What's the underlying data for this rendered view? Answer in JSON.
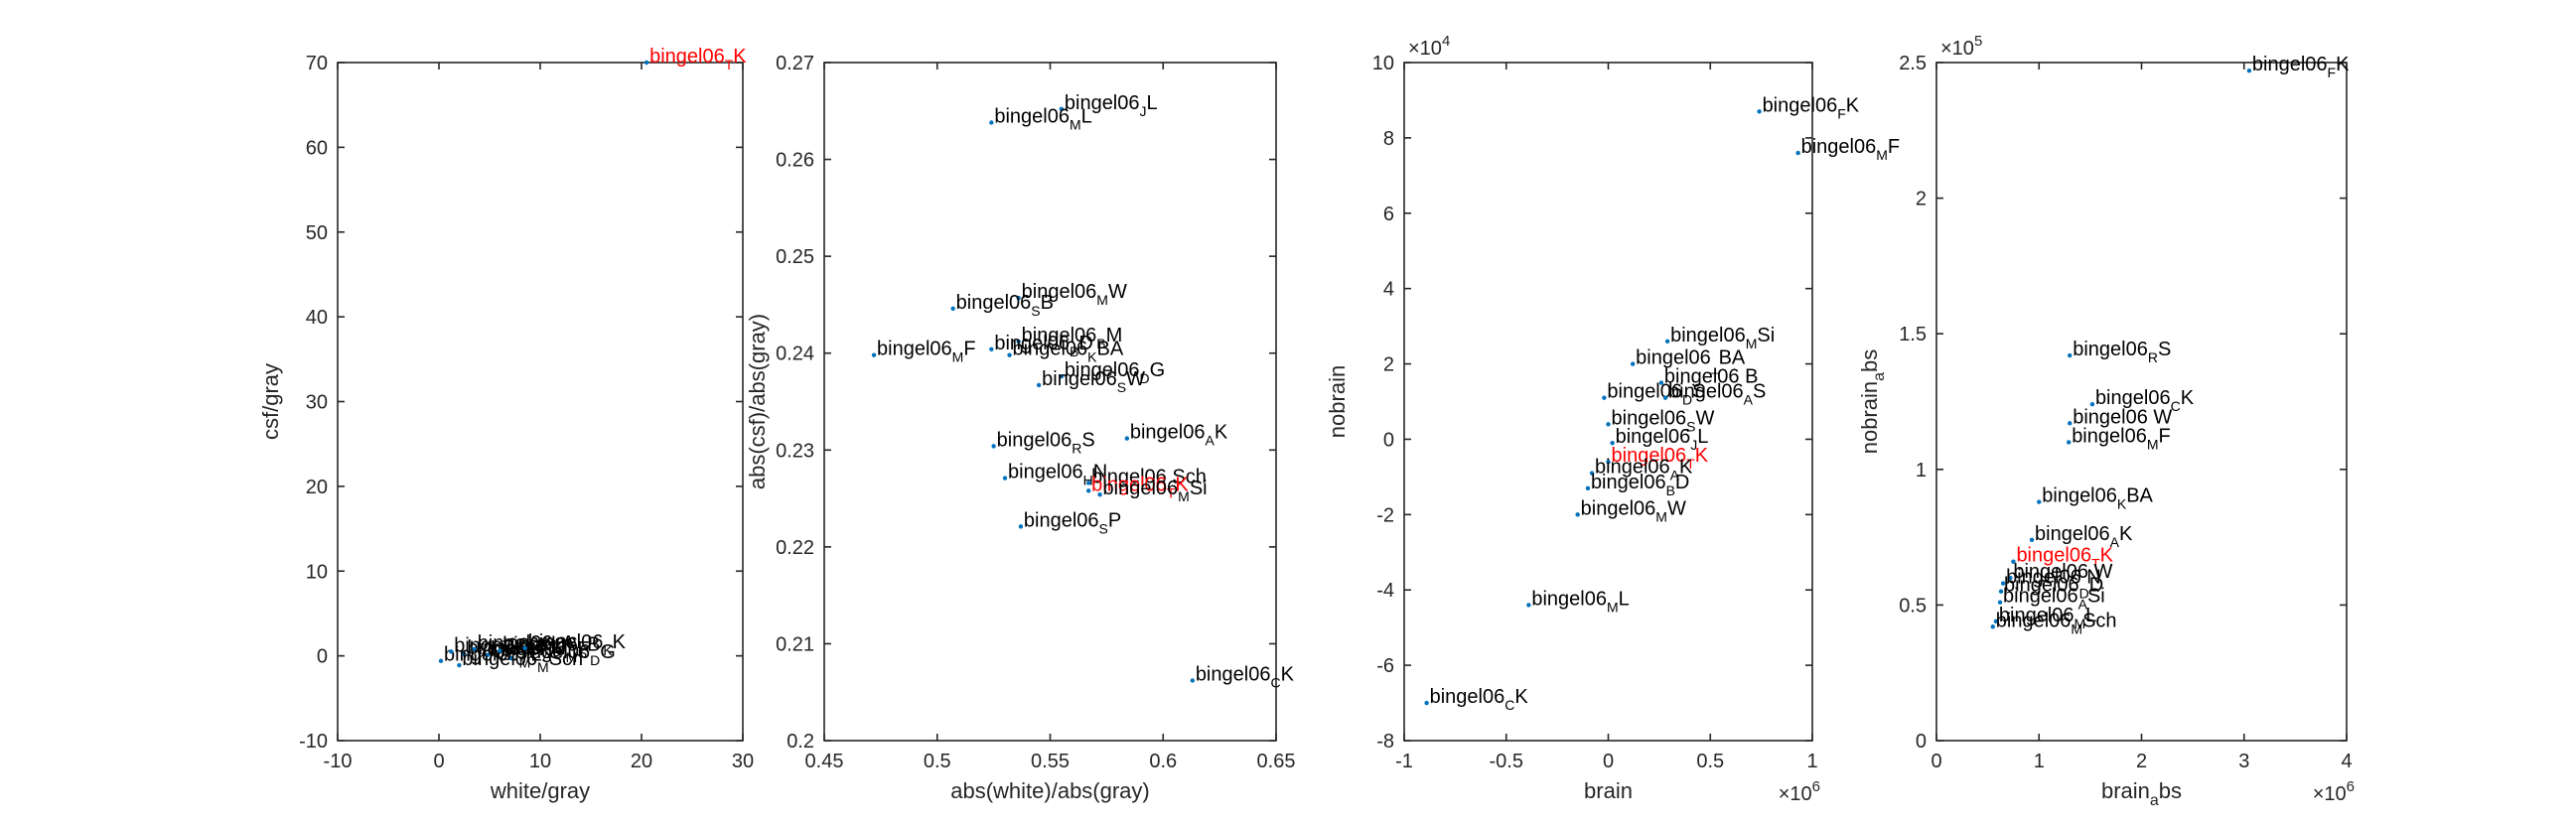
{
  "colors": {
    "axis": "#262626",
    "marker": "#0072bd",
    "label": "#000000",
    "highlight": "#ff0000"
  },
  "chart_data": [
    {
      "type": "scatter",
      "xlabel": "white/gray",
      "ylabel": "csf/gray",
      "xlim": [
        -10,
        30
      ],
      "ylim": [
        -10,
        70
      ],
      "xticks": [
        -10,
        0,
        10,
        20,
        30
      ],
      "yticks": [
        -10,
        0,
        10,
        20,
        30,
        40,
        50,
        60,
        70
      ],
      "xtick_labels": [
        "-10",
        "0",
        "10",
        "20",
        "30"
      ],
      "ytick_labels": [
        "-10",
        "0",
        "10",
        "20",
        "30",
        "40",
        "50",
        "60",
        "70"
      ],
      "x_exponent": "",
      "y_exponent": "",
      "points": [
        {
          "x": 20.5,
          "y": 70.0,
          "label": "bingel06",
          "sub": "T",
          "suffix": "K",
          "highlight": true
        },
        {
          "x": 0.2,
          "y": -0.6,
          "label": "bingel06",
          "sub": "M",
          "suffix": "L",
          "highlight": false
        },
        {
          "x": 1.2,
          "y": 0.5,
          "label": "bingel06",
          "sub": "C",
          "suffix": "K",
          "highlight": false
        },
        {
          "x": 2.5,
          "y": 0.2,
          "label": "bingel06",
          "sub": "A",
          "suffix": "K",
          "highlight": false
        },
        {
          "x": 3.5,
          "y": 0.8,
          "label": "bingel06",
          "sub": "B",
          "suffix": "A",
          "highlight": false
        },
        {
          "x": 4.8,
          "y": 0.1,
          "label": "bingel06",
          "sub": "M",
          "suffix": "F",
          "highlight": false
        },
        {
          "x": 6.0,
          "y": 0.6,
          "label": "bingel06",
          "sub": "S",
          "suffix": "B",
          "highlight": false
        },
        {
          "x": 7.2,
          "y": -0.3,
          "label": "bingel06",
          "sub": "D",
          "suffix": "G",
          "highlight": false
        },
        {
          "x": 8.5,
          "y": 0.9,
          "label": "bingel06",
          "sub": "K",
          "suffix": "K",
          "highlight": false
        },
        {
          "x": 2.0,
          "y": -1.1,
          "label": "bingel06",
          "sub": "M",
          "suffix": "Sch",
          "highlight": false
        }
      ]
    },
    {
      "type": "scatter",
      "xlabel": "abs(white)/abs(gray)",
      "ylabel": "abs(csf)/abs(gray)",
      "xlim": [
        0.45,
        0.65
      ],
      "ylim": [
        0.2,
        0.27
      ],
      "xticks": [
        0.45,
        0.5,
        0.55,
        0.6,
        0.65
      ],
      "yticks": [
        0.2,
        0.21,
        0.22,
        0.23,
        0.24,
        0.25,
        0.26,
        0.27
      ],
      "xtick_labels": [
        "0.45",
        "0.5",
        "0.55",
        "0.6",
        "0.65"
      ],
      "ytick_labels": [
        "0.2",
        "0.21",
        "0.22",
        "0.23",
        "0.24",
        "0.25",
        "0.26",
        "0.27"
      ],
      "x_exponent": "",
      "y_exponent": "",
      "points": [
        {
          "x": 0.555,
          "y": 0.2652,
          "label": "bingel06",
          "sub": "J",
          "suffix": "L",
          "highlight": false
        },
        {
          "x": 0.524,
          "y": 0.2638,
          "label": "bingel06",
          "sub": "M",
          "suffix": "L",
          "highlight": false
        },
        {
          "x": 0.536,
          "y": 0.2457,
          "label": "bingel06",
          "sub": "M",
          "suffix": "W",
          "highlight": false
        },
        {
          "x": 0.507,
          "y": 0.2446,
          "label": "bingel06",
          "sub": "S",
          "suffix": "B",
          "highlight": false
        },
        {
          "x": 0.536,
          "y": 0.2412,
          "label": "bingel06",
          "sub": "B",
          "suffix": "M",
          "highlight": false
        },
        {
          "x": 0.472,
          "y": 0.2398,
          "label": "bingel06",
          "sub": "M",
          "suffix": "F",
          "highlight": false
        },
        {
          "x": 0.524,
          "y": 0.2404,
          "label": "bingel06",
          "sub": "B",
          "suffix": "D",
          "highlight": false
        },
        {
          "x": 0.532,
          "y": 0.2398,
          "label": "bingel06",
          "sub": "K",
          "suffix": "BA",
          "highlight": false
        },
        {
          "x": 0.555,
          "y": 0.2376,
          "label": "bingel06",
          "sub": "D",
          "suffix": "G",
          "highlight": false
        },
        {
          "x": 0.545,
          "y": 0.2367,
          "label": "bingel06",
          "sub": "S",
          "suffix": "W",
          "highlight": false
        },
        {
          "x": 0.525,
          "y": 0.2304,
          "label": "bingel06",
          "sub": "R",
          "suffix": "S",
          "highlight": false
        },
        {
          "x": 0.584,
          "y": 0.2312,
          "label": "bingel06",
          "sub": "A",
          "suffix": "K",
          "highlight": false
        },
        {
          "x": 0.53,
          "y": 0.2271,
          "label": "bingel06",
          "sub": "H",
          "suffix": "N",
          "highlight": false
        },
        {
          "x": 0.567,
          "y": 0.2266,
          "label": "bingel06",
          "sub": "",
          "suffix": "Sch",
          "highlight": false
        },
        {
          "x": 0.567,
          "y": 0.2258,
          "label": "bingel06",
          "sub": "T",
          "suffix": "K",
          "highlight": true
        },
        {
          "x": 0.572,
          "y": 0.2254,
          "label": "bingel06",
          "sub": "M",
          "suffix": "Si",
          "highlight": false
        },
        {
          "x": 0.537,
          "y": 0.2221,
          "label": "bingel06",
          "sub": "S",
          "suffix": "P",
          "highlight": false
        },
        {
          "x": 0.613,
          "y": 0.2062,
          "label": "bingel06",
          "sub": "C",
          "suffix": "K",
          "highlight": false
        }
      ]
    },
    {
      "type": "scatter",
      "xlabel": "brain",
      "ylabel": "nobrain",
      "xlim": [
        -1.0,
        1.0
      ],
      "ylim": [
        -8,
        10
      ],
      "xticks": [
        -1.0,
        -0.5,
        0.0,
        0.5,
        1.0
      ],
      "yticks": [
        -8,
        -6,
        -4,
        -2,
        0,
        2,
        4,
        6,
        8,
        10
      ],
      "xtick_labels": [
        "-1",
        "-0.5",
        "0",
        "0.5",
        "1"
      ],
      "ytick_labels": [
        "-8",
        "-6",
        "-4",
        "-2",
        "0",
        "2",
        "4",
        "6",
        "8",
        "10"
      ],
      "x_exponent": "×10^6",
      "y_exponent": "×10^4",
      "points": [
        {
          "x": 0.74,
          "y": 8.7,
          "label": "bingel06",
          "sub": "F",
          "suffix": "K",
          "highlight": false
        },
        {
          "x": 0.93,
          "y": 7.6,
          "label": "bingel06",
          "sub": "M",
          "suffix": "F",
          "highlight": false
        },
        {
          "x": 0.29,
          "y": 2.6,
          "label": "bingel06",
          "sub": "M",
          "suffix": "Si",
          "highlight": false
        },
        {
          "x": 0.12,
          "y": 2.0,
          "label": "bingel06",
          "sub": "_",
          "suffix": "BA",
          "highlight": false
        },
        {
          "x": 0.26,
          "y": 1.5,
          "label": "bingel06",
          "sub": "",
          "suffix": "B",
          "highlight": false
        },
        {
          "x": -0.02,
          "y": 1.1,
          "label": "bingel06",
          "sub": "D",
          "suffix": "S",
          "highlight": false
        },
        {
          "x": 0.28,
          "y": 1.1,
          "label": "bingel06",
          "sub": "A",
          "suffix": "S",
          "highlight": false
        },
        {
          "x": 0.0,
          "y": 0.4,
          "label": "bingel06",
          "sub": "S",
          "suffix": "W",
          "highlight": false
        },
        {
          "x": 0.02,
          "y": -0.1,
          "label": "bingel06",
          "sub": "J",
          "suffix": "L",
          "highlight": false
        },
        {
          "x": 0.0,
          "y": -0.6,
          "label": "bingel06",
          "sub": "T",
          "suffix": "K",
          "highlight": true
        },
        {
          "x": -0.08,
          "y": -0.9,
          "label": "bingel06",
          "sub": "A",
          "suffix": "K",
          "highlight": false
        },
        {
          "x": -0.1,
          "y": -1.3,
          "label": "bingel06",
          "sub": "B",
          "suffix": "D",
          "highlight": false
        },
        {
          "x": -0.15,
          "y": -2.0,
          "label": "bingel06",
          "sub": "M",
          "suffix": "W",
          "highlight": false
        },
        {
          "x": -0.39,
          "y": -4.4,
          "label": "bingel06",
          "sub": "M",
          "suffix": "L",
          "highlight": false
        },
        {
          "x": -0.89,
          "y": -7.0,
          "label": "bingel06",
          "sub": "C",
          "suffix": "K",
          "highlight": false
        }
      ]
    },
    {
      "type": "scatter",
      "xlabel": "brain_abs",
      "ylabel": "nobrain_abs",
      "xlim": [
        0,
        4
      ],
      "ylim": [
        0,
        2.5
      ],
      "xticks": [
        0,
        1,
        2,
        3,
        4
      ],
      "yticks": [
        0,
        0.5,
        1.0,
        1.5,
        2.0,
        2.5
      ],
      "xtick_labels": [
        "0",
        "1",
        "2",
        "3",
        "4"
      ],
      "ytick_labels": [
        "0",
        "0.5",
        "1",
        "1.5",
        "2",
        "2.5"
      ],
      "x_exponent": "×10^6",
      "y_exponent": "×10^5",
      "points": [
        {
          "x": 3.05,
          "y": 2.47,
          "label": "bingel06",
          "sub": "F",
          "suffix": "K",
          "highlight": false
        },
        {
          "x": 1.3,
          "y": 1.42,
          "label": "bingel06",
          "sub": "R",
          "suffix": "S",
          "highlight": false
        },
        {
          "x": 1.52,
          "y": 1.24,
          "label": "bingel06",
          "sub": "C",
          "suffix": "K",
          "highlight": false
        },
        {
          "x": 1.3,
          "y": 1.17,
          "label": "bingel06",
          "sub": "",
          "suffix": "W",
          "highlight": false
        },
        {
          "x": 1.29,
          "y": 1.1,
          "label": "bingel06",
          "sub": "M",
          "suffix": "F",
          "highlight": false
        },
        {
          "x": 1.0,
          "y": 0.88,
          "label": "bingel06",
          "sub": "K",
          "suffix": "BA",
          "highlight": false
        },
        {
          "x": 0.93,
          "y": 0.74,
          "label": "bingel06",
          "sub": "A",
          "suffix": "K",
          "highlight": false
        },
        {
          "x": 0.75,
          "y": 0.66,
          "label": "bingel06",
          "sub": "T",
          "suffix": "K",
          "highlight": true
        },
        {
          "x": 0.72,
          "y": 0.6,
          "label": "bingel06",
          "sub": "",
          "suffix": "W",
          "highlight": false
        },
        {
          "x": 0.65,
          "y": 0.58,
          "label": "bingel06",
          "sub": "",
          "suffix": "N",
          "highlight": false
        },
        {
          "x": 0.63,
          "y": 0.55,
          "label": "bingel06",
          "sub": "D",
          "suffix": "D",
          "highlight": false
        },
        {
          "x": 0.62,
          "y": 0.51,
          "label": "bingel06",
          "sub": "A",
          "suffix": "Si",
          "highlight": false
        },
        {
          "x": 0.58,
          "y": 0.44,
          "label": "bingel06",
          "sub": "M",
          "suffix": "L",
          "highlight": false
        },
        {
          "x": 0.55,
          "y": 0.42,
          "label": "bingel06",
          "sub": "M",
          "suffix": "Sch",
          "highlight": false
        }
      ]
    }
  ]
}
